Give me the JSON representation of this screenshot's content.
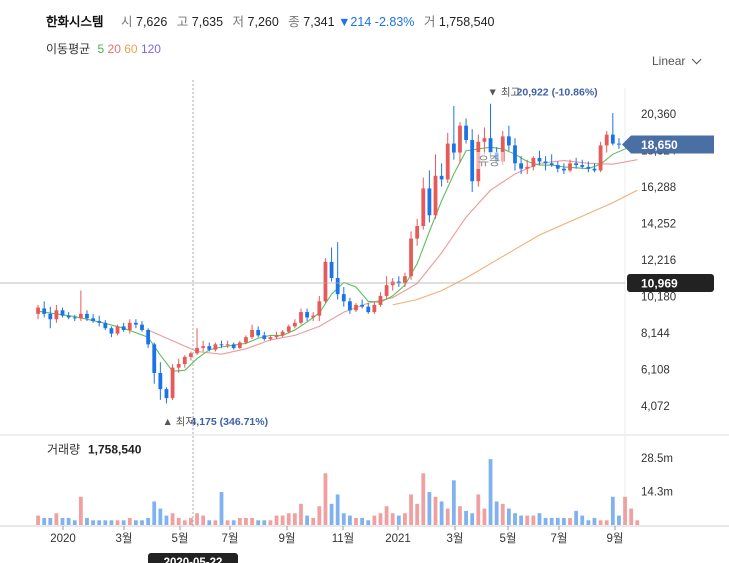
{
  "header": {
    "name": "한화시스템",
    "open_label": "시",
    "open": "7,626",
    "high_label": "고",
    "high": "7,635",
    "low_label": "저",
    "low": "7,260",
    "close_label": "종",
    "close": "7,341",
    "change": "▼214",
    "change_pct": "-2.83%",
    "volume_label": "거",
    "volume": "1,758,540"
  },
  "moving_avg": {
    "label": "이동평균",
    "items": [
      {
        "period": "5",
        "color": "#4caf50"
      },
      {
        "period": "20",
        "color": "#e57373"
      },
      {
        "period": "60",
        "color": "#f0a050"
      },
      {
        "period": "120",
        "color": "#7b68ee"
      }
    ]
  },
  "scale_toggle": "Linear",
  "volume_panel": {
    "label": "거래량",
    "value": "1,758,540"
  },
  "crosshair": {
    "price_tag": "10,969",
    "date_tag": "2020-05-22"
  },
  "current_price_tag": "18,650",
  "overlay_text": "유증",
  "colors": {
    "up": "#e85a5a",
    "down": "#1a73e8",
    "up_light": "#f0a0a0",
    "down_light": "#7fb2ee"
  },
  "chart_data": {
    "type": "candlestick",
    "price_axis_ticks": [
      20360,
      18324,
      16288,
      14252,
      12216,
      10180,
      8144,
      6108,
      4072
    ],
    "price_range": [
      3000,
      21800
    ],
    "volume_axis_ticks": [
      "28.5m",
      "14.3m"
    ],
    "volume_range_m": [
      0,
      37
    ],
    "x_axis_labels": [
      "2020",
      "3월",
      "5월",
      "7월",
      "9월",
      "11월",
      "2021",
      "3월",
      "5월",
      "7월",
      "9월"
    ],
    "annotations": {
      "high": {
        "label": "최고",
        "value": "20,922 (-10.86%)"
      },
      "low": {
        "label": "최저",
        "value": "4,175 (346.71%)"
      }
    },
    "candles": [
      [
        9200,
        9700,
        8900,
        9550
      ],
      [
        9500,
        9900,
        9000,
        9200
      ],
      [
        9200,
        9600,
        8400,
        8900
      ],
      [
        8900,
        9700,
        8700,
        9400
      ],
      [
        9400,
        9550,
        9000,
        9100
      ],
      [
        9100,
        9300,
        8900,
        9000
      ],
      [
        9000,
        9150,
        8800,
        8950
      ],
      [
        8950,
        10500,
        8800,
        9200
      ],
      [
        9200,
        9400,
        8800,
        8950
      ],
      [
        8950,
        9200,
        8700,
        8800
      ],
      [
        8800,
        9100,
        8500,
        8700
      ],
      [
        8700,
        8850,
        8300,
        8400
      ],
      [
        8400,
        8500,
        7900,
        8100
      ],
      [
        8100,
        8600,
        8000,
        8500
      ],
      [
        8500,
        8700,
        8200,
        8300
      ],
      [
        8300,
        8900,
        8100,
        8700
      ],
      [
        8700,
        8900,
        8400,
        8600
      ],
      [
        8600,
        8800,
        8200,
        8300
      ],
      [
        8300,
        8400,
        7300,
        7500
      ],
      [
        7500,
        7600,
        5300,
        5900
      ],
      [
        5900,
        6500,
        4400,
        5000
      ],
      [
        5000,
        5100,
        4200,
        4500
      ],
      [
        4500,
        6400,
        4400,
        6200
      ],
      [
        6200,
        6700,
        5900,
        6400
      ],
      [
        6400,
        6900,
        6200,
        6800
      ],
      [
        6800,
        7100,
        6600,
        7000
      ],
      [
        7000,
        8400,
        6900,
        7300
      ],
      [
        7300,
        7700,
        7100,
        7400
      ],
      [
        7400,
        7600,
        7100,
        7200
      ],
      [
        7200,
        7600,
        7100,
        7500
      ],
      [
        7500,
        7700,
        7300,
        7450
      ],
      [
        7450,
        7700,
        7300,
        7500
      ],
      [
        7500,
        7600,
        7200,
        7300
      ],
      [
        7300,
        7700,
        7250,
        7600
      ],
      [
        7600,
        8000,
        7500,
        7900
      ],
      [
        7900,
        8600,
        7800,
        8300
      ],
      [
        8300,
        8500,
        7900,
        8000
      ],
      [
        8000,
        8200,
        7700,
        7800
      ],
      [
        7800,
        8000,
        7700,
        7900
      ],
      [
        7900,
        8200,
        7800,
        8000
      ],
      [
        8000,
        8300,
        7900,
        8200
      ],
      [
        8200,
        8600,
        8100,
        8500
      ],
      [
        8500,
        8900,
        8400,
        8700
      ],
      [
        8700,
        9500,
        8600,
        9300
      ],
      [
        9300,
        9500,
        8800,
        9000
      ],
      [
        9000,
        9300,
        8800,
        9100
      ],
      [
        9100,
        10200,
        8800,
        9900
      ],
      [
        9900,
        12300,
        9800,
        12100
      ],
      [
        12100,
        12900,
        11000,
        11200
      ],
      [
        11200,
        13200,
        10000,
        10300
      ],
      [
        10300,
        10700,
        9600,
        9900
      ],
      [
        9900,
        10100,
        9200,
        9400
      ],
      [
        9400,
        9800,
        9300,
        9700
      ],
      [
        9700,
        10000,
        9500,
        9600
      ],
      [
        9600,
        9800,
        9200,
        9300
      ],
      [
        9300,
        9900,
        9200,
        9700
      ],
      [
        9700,
        10400,
        9600,
        10200
      ],
      [
        10200,
        11300,
        10000,
        10800
      ],
      [
        10800,
        11200,
        10500,
        11000
      ],
      [
        11000,
        11300,
        10700,
        10900
      ],
      [
        10900,
        11500,
        10700,
        11300
      ],
      [
        11300,
        13800,
        11100,
        13400
      ],
      [
        13400,
        14500,
        13000,
        14100
      ],
      [
        14100,
        16800,
        13900,
        16200
      ],
      [
        16200,
        17200,
        14300,
        14700
      ],
      [
        14700,
        18100,
        14500,
        16900
      ],
      [
        16900,
        17600,
        16300,
        16700
      ],
      [
        16700,
        19300,
        16500,
        18700
      ],
      [
        18700,
        20800,
        17800,
        18200
      ],
      [
        18200,
        19900,
        17600,
        19700
      ],
      [
        19700,
        20100,
        18700,
        18900
      ],
      [
        18900,
        19500,
        16000,
        16600
      ],
      [
        16600,
        19200,
        16300,
        18800
      ],
      [
        18800,
        19600,
        18100,
        19000
      ],
      [
        19000,
        20922,
        17900,
        18200
      ],
      [
        18200,
        18500,
        17600,
        17700
      ],
      [
        17700,
        19400,
        17500,
        19100
      ],
      [
        19100,
        19700,
        18300,
        18600
      ],
      [
        18600,
        19000,
        17200,
        17600
      ],
      [
        17600,
        18000,
        17000,
        17300
      ],
      [
        17300,
        17800,
        17000,
        17400
      ],
      [
        17400,
        18000,
        17200,
        17900
      ],
      [
        17900,
        18300,
        17500,
        17700
      ],
      [
        17700,
        18000,
        17200,
        17600
      ],
      [
        17600,
        18100,
        17400,
        17500
      ],
      [
        17500,
        17700,
        17100,
        17300
      ],
      [
        17300,
        17600,
        17000,
        17200
      ],
      [
        17200,
        17800,
        17100,
        17600
      ],
      [
        17600,
        17900,
        17300,
        17500
      ],
      [
        17500,
        17800,
        17300,
        17400
      ],
      [
        17400,
        17700,
        17100,
        17300
      ],
      [
        17300,
        17600,
        17100,
        17200
      ],
      [
        17200,
        18800,
        17100,
        18600
      ],
      [
        18600,
        19400,
        18200,
        19200
      ],
      [
        19200,
        20400,
        18600,
        18700
      ],
      [
        18700,
        19000,
        18400,
        18650
      ]
    ],
    "volume_m": [
      4,
      3,
      3,
      5,
      3,
      3,
      2,
      12,
      3,
      2,
      2,
      2,
      2,
      2,
      2,
      3,
      2,
      2,
      3,
      10,
      7,
      4,
      5,
      3,
      2,
      3,
      5,
      4,
      2,
      2,
      14,
      2,
      2,
      3,
      3,
      3,
      2,
      2,
      2,
      4,
      4,
      5,
      5,
      9,
      4,
      3,
      8,
      22,
      9,
      13,
      5,
      4,
      3,
      3,
      2,
      4,
      5,
      8,
      5,
      4,
      5,
      13,
      9,
      22,
      14,
      12,
      10,
      7,
      19,
      8,
      6,
      5,
      13,
      7,
      28,
      10,
      9,
      7,
      5,
      4,
      4,
      4,
      5,
      3,
      3,
      3,
      3,
      3,
      6,
      4,
      2,
      3,
      2,
      2,
      12,
      4,
      12,
      7,
      2
    ],
    "ma5": [
      [
        0,
        9350
      ],
      [
        3,
        9200
      ],
      [
        6,
        9050
      ],
      [
        10,
        8750
      ],
      [
        14,
        8400
      ],
      [
        18,
        7900
      ],
      [
        20,
        6900
      ],
      [
        22,
        6000
      ],
      [
        24,
        6050
      ],
      [
        26,
        6700
      ],
      [
        28,
        7200
      ],
      [
        30,
        7350
      ],
      [
        32,
        7450
      ],
      [
        34,
        7550
      ],
      [
        36,
        7850
      ],
      [
        38,
        8000
      ],
      [
        40,
        8000
      ],
      [
        42,
        8300
      ],
      [
        44,
        8750
      ],
      [
        46,
        9250
      ],
      [
        48,
        10300
      ],
      [
        50,
        10950
      ],
      [
        52,
        10700
      ],
      [
        54,
        9900
      ],
      [
        56,
        9850
      ],
      [
        58,
        10200
      ],
      [
        60,
        10800
      ],
      [
        62,
        12000
      ],
      [
        64,
        13800
      ],
      [
        66,
        15500
      ],
      [
        68,
        17000
      ],
      [
        70,
        18300
      ],
      [
        72,
        18400
      ],
      [
        74,
        18500
      ],
      [
        76,
        18400
      ],
      [
        78,
        18100
      ],
      [
        80,
        17700
      ],
      [
        82,
        17500
      ],
      [
        84,
        17500
      ],
      [
        86,
        17400
      ],
      [
        88,
        17350
      ],
      [
        90,
        17300
      ],
      [
        92,
        17550
      ],
      [
        94,
        18100
      ],
      [
        98,
        18700
      ]
    ],
    "ma20": [
      [
        18,
        8300
      ],
      [
        22,
        7700
      ],
      [
        26,
        7100
      ],
      [
        30,
        6950
      ],
      [
        34,
        7250
      ],
      [
        38,
        7750
      ],
      [
        42,
        8000
      ],
      [
        46,
        8500
      ],
      [
        50,
        9300
      ],
      [
        54,
        9800
      ],
      [
        58,
        10100
      ],
      [
        62,
        10900
      ],
      [
        66,
        12600
      ],
      [
        70,
        14600
      ],
      [
        74,
        16100
      ],
      [
        78,
        17000
      ],
      [
        82,
        17600
      ],
      [
        86,
        17750
      ],
      [
        90,
        17600
      ],
      [
        94,
        17550
      ],
      [
        98,
        17800
      ]
    ],
    "ma60": [
      [
        58,
        9700
      ],
      [
        62,
        10000
      ],
      [
        66,
        10500
      ],
      [
        70,
        11200
      ],
      [
        74,
        12000
      ],
      [
        78,
        12800
      ],
      [
        82,
        13600
      ],
      [
        86,
        14200
      ],
      [
        90,
        14800
      ],
      [
        94,
        15400
      ],
      [
        98,
        16100
      ]
    ]
  }
}
